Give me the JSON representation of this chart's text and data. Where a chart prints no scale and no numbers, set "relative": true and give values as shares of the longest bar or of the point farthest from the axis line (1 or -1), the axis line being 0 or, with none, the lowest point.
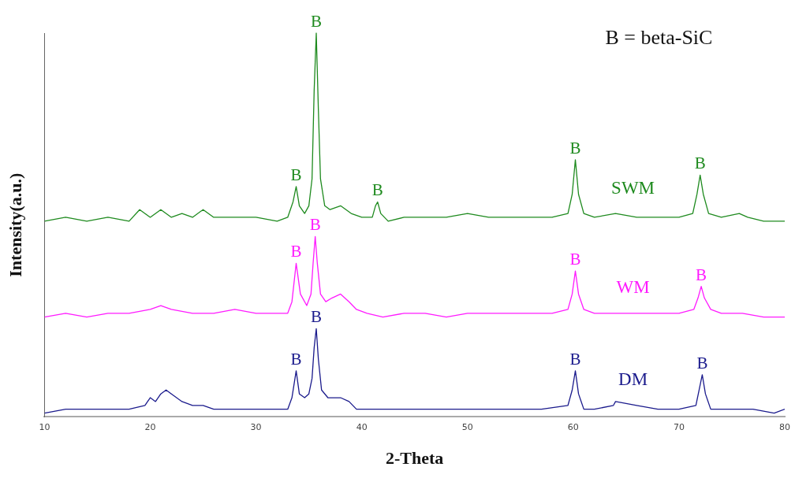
{
  "chart_data": {
    "type": "line",
    "relative": true,
    "xlabel": "2-Theta",
    "ylabel": "Intensity(a.u.)",
    "xlim": [
      10,
      80
    ],
    "xticks": [
      10,
      20,
      30,
      40,
      50,
      60,
      70,
      80
    ],
    "grid": false,
    "legend": false,
    "marker": "none",
    "line_style": "solid",
    "series": [
      {
        "name": "SWM",
        "color": "#1e8a1e",
        "x": [
          10,
          12,
          14,
          16,
          18,
          19,
          20,
          21,
          22,
          23,
          24,
          25,
          26,
          28,
          30,
          32,
          33,
          33.5,
          33.8,
          34.1,
          34.6,
          35,
          35.3,
          35.5,
          35.7,
          35.9,
          36.1,
          36.5,
          37,
          38,
          39,
          40,
          41,
          41.3,
          41.5,
          41.8,
          42.5,
          44,
          46,
          48,
          50,
          52,
          54,
          56,
          58,
          59.5,
          59.9,
          60.2,
          60.5,
          61,
          62,
          64,
          66,
          68,
          70,
          71.3,
          71.7,
          72,
          72.3,
          72.8,
          74,
          75.7,
          76.5,
          78,
          80
        ],
        "values": [
          0.51,
          0.52,
          0.51,
          0.52,
          0.51,
          0.54,
          0.52,
          0.54,
          0.52,
          0.53,
          0.52,
          0.54,
          0.52,
          0.52,
          0.52,
          0.51,
          0.52,
          0.56,
          0.6,
          0.55,
          0.53,
          0.55,
          0.62,
          0.85,
          1.0,
          0.8,
          0.62,
          0.55,
          0.54,
          0.55,
          0.53,
          0.52,
          0.52,
          0.55,
          0.56,
          0.53,
          0.51,
          0.52,
          0.52,
          0.52,
          0.53,
          0.52,
          0.52,
          0.52,
          0.52,
          0.53,
          0.58,
          0.67,
          0.58,
          0.53,
          0.52,
          0.53,
          0.52,
          0.52,
          0.52,
          0.53,
          0.58,
          0.63,
          0.58,
          0.53,
          0.52,
          0.53,
          0.52,
          0.51,
          0.51
        ]
      },
      {
        "name": "WM",
        "color": "#ff1aff",
        "x": [
          10,
          12,
          14,
          16,
          18,
          20,
          21,
          22,
          24,
          26,
          28,
          30,
          32,
          33,
          33.4,
          33.8,
          34.2,
          34.8,
          35.2,
          35.4,
          35.6,
          35.8,
          36.1,
          36.6,
          37.2,
          38,
          38.8,
          39.5,
          40.5,
          42,
          44,
          46,
          48,
          50,
          52,
          54,
          56,
          58,
          59.5,
          59.9,
          60.2,
          60.5,
          61,
          62,
          64,
          66,
          68,
          70,
          71.4,
          71.8,
          72.1,
          72.4,
          73,
          74,
          76,
          78,
          80
        ],
        "values": [
          0.26,
          0.27,
          0.26,
          0.27,
          0.27,
          0.28,
          0.29,
          0.28,
          0.27,
          0.27,
          0.28,
          0.27,
          0.27,
          0.27,
          0.3,
          0.4,
          0.32,
          0.29,
          0.32,
          0.4,
          0.47,
          0.4,
          0.32,
          0.3,
          0.31,
          0.32,
          0.3,
          0.28,
          0.27,
          0.26,
          0.27,
          0.27,
          0.26,
          0.27,
          0.27,
          0.27,
          0.27,
          0.27,
          0.28,
          0.32,
          0.38,
          0.32,
          0.28,
          0.27,
          0.27,
          0.27,
          0.27,
          0.27,
          0.28,
          0.31,
          0.34,
          0.31,
          0.28,
          0.27,
          0.27,
          0.26,
          0.26
        ]
      },
      {
        "name": "DM",
        "color": "#1a1a8c",
        "x": [
          10,
          12,
          14,
          16,
          18,
          19.5,
          20,
          20.5,
          21,
          21.5,
          22,
          23,
          24,
          25,
          26,
          28,
          30,
          32,
          33,
          33.4,
          33.8,
          34.1,
          34.6,
          35,
          35.3,
          35.5,
          35.7,
          35.9,
          36.2,
          36.8,
          37.5,
          38,
          38.8,
          39.5,
          41,
          43,
          45,
          47,
          49,
          51,
          53,
          55,
          57,
          59.5,
          59.9,
          60.2,
          60.5,
          61,
          62,
          63.8,
          64,
          66,
          68,
          70,
          71.6,
          71.9,
          72.2,
          72.5,
          73,
          75,
          77,
          79,
          80
        ],
        "values": [
          0.01,
          0.02,
          0.02,
          0.02,
          0.02,
          0.03,
          0.05,
          0.04,
          0.06,
          0.07,
          0.06,
          0.04,
          0.03,
          0.03,
          0.02,
          0.02,
          0.02,
          0.02,
          0.02,
          0.05,
          0.12,
          0.06,
          0.05,
          0.06,
          0.1,
          0.18,
          0.23,
          0.15,
          0.07,
          0.05,
          0.05,
          0.05,
          0.04,
          0.02,
          0.02,
          0.02,
          0.02,
          0.02,
          0.02,
          0.02,
          0.02,
          0.02,
          0.02,
          0.03,
          0.07,
          0.12,
          0.06,
          0.02,
          0.02,
          0.03,
          0.04,
          0.03,
          0.02,
          0.02,
          0.03,
          0.07,
          0.11,
          0.06,
          0.02,
          0.02,
          0.02,
          0.01,
          0.02
        ]
      }
    ],
    "annotations": [
      "B = beta-SiC",
      {
        "text": "B",
        "x": 33.8,
        "y": 0.6
      },
      {
        "text": "B",
        "x": 35.7,
        "y": 1.0
      },
      {
        "text": "B",
        "x": 41.5,
        "y": 0.56
      },
      {
        "text": "B",
        "x": 60.2,
        "y": 0.67
      },
      {
        "text": "B",
        "x": 72,
        "y": 0.63
      },
      {
        "text": "B",
        "x": 33.8,
        "y": 0.4
      },
      {
        "text": "B",
        "x": 35.6,
        "y": 0.47
      },
      {
        "text": "B",
        "x": 60.2,
        "y": 0.38
      },
      {
        "text": "B",
        "x": 72.1,
        "y": 0.34
      },
      {
        "text": "B",
        "x": 33.8,
        "y": 0.12
      },
      {
        "text": "B",
        "x": 35.7,
        "y": 0.23
      },
      {
        "text": "B",
        "x": 60.2,
        "y": 0.12
      },
      {
        "text": "B",
        "x": 72.2,
        "y": 0.11
      }
    ]
  }
}
